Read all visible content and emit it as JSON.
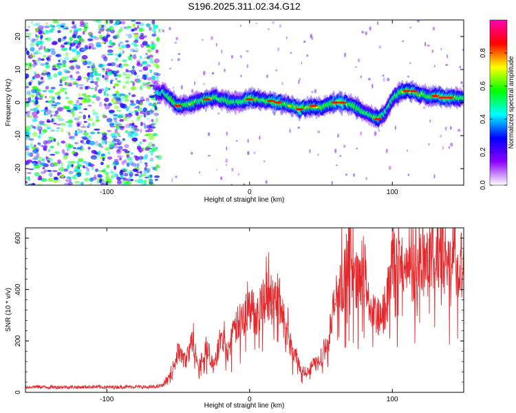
{
  "title": "S196.2025.311.02.34.G12",
  "chart_data": [
    {
      "type": "heatmap",
      "title": "S196.2025.311.02.34.G12",
      "xlabel": "Height of straight line (km)",
      "ylabel": "Frequency (Hz)",
      "xlim": [
        -157,
        150
      ],
      "ylim": [
        -25,
        25
      ],
      "x_ticks": [
        -100,
        0,
        100
      ],
      "x_tick_labels": [
        "-100",
        "0",
        "100"
      ],
      "y_ticks": [
        -20,
        -10,
        0,
        10,
        20
      ],
      "y_tick_labels": [
        "-20",
        "-10",
        "0",
        "10",
        "20"
      ],
      "noise_region_x": [
        -157,
        -63
      ],
      "ridge": {
        "x": [
          -65,
          -60,
          -55,
          -50,
          -45,
          -40,
          -35,
          -30,
          -25,
          -20,
          -15,
          -10,
          -5,
          0,
          5,
          10,
          15,
          20,
          25,
          30,
          35,
          40,
          45,
          50,
          55,
          60,
          65,
          70,
          75,
          80,
          85,
          90,
          95,
          100,
          105,
          110,
          115,
          120,
          125,
          130,
          135,
          140,
          145,
          150
        ],
        "y": [
          3,
          3,
          1,
          -1,
          -1,
          0,
          0.5,
          1,
          1.5,
          1,
          0.5,
          0,
          0.5,
          1,
          1,
          0.5,
          0.5,
          0,
          -0.5,
          -1,
          -2,
          -1.5,
          -1,
          -1.5,
          -0.5,
          0,
          0,
          -0.5,
          -1.5,
          -3,
          -4,
          -5,
          -3,
          1,
          3,
          3.5,
          3.5,
          2.5,
          2,
          2,
          1.5,
          1.5,
          1.5,
          1.5
        ],
        "amplitude": [
          0.35,
          0.45,
          0.65,
          0.75,
          0.55,
          0.7,
          0.5,
          0.75,
          0.6,
          0.55,
          0.7,
          0.5,
          0.6,
          0.85,
          0.7,
          0.55,
          0.75,
          0.85,
          0.6,
          0.7,
          0.9,
          0.65,
          0.75,
          0.7,
          0.6,
          0.85,
          0.9,
          0.6,
          0.7,
          0.5,
          0.55,
          0.75,
          0.45,
          0.55,
          0.6,
          0.75,
          0.8,
          0.7,
          0.6,
          0.75,
          0.85,
          0.8,
          0.65,
          0.5
        ]
      }
    },
    {
      "type": "line",
      "title": "",
      "xlabel": "Height of straight line (km)",
      "ylabel": "SNR (10 * v/v)",
      "xlim": [
        -157,
        150
      ],
      "ylim": [
        0,
        640
      ],
      "x_ticks": [
        -100,
        0,
        100
      ],
      "x_tick_labels": [
        "-100",
        "0",
        "100"
      ],
      "y_ticks": [
        0,
        200,
        400,
        600
      ],
      "y_tick_labels": [
        "0",
        "200",
        "400",
        "600"
      ],
      "series": [
        {
          "name": "SNR",
          "color": "#e8262a",
          "x": [
            -157,
            -150,
            -140,
            -130,
            -120,
            -110,
            -100,
            -90,
            -80,
            -70,
            -65,
            -60,
            -55,
            -50,
            -45,
            -40,
            -35,
            -30,
            -25,
            -20,
            -15,
            -10,
            -5,
            0,
            5,
            10,
            15,
            20,
            25,
            30,
            35,
            40,
            45,
            50,
            55,
            60,
            65,
            70,
            75,
            80,
            85,
            90,
            95,
            100,
            105,
            110,
            115,
            120,
            125,
            130,
            135,
            140,
            145,
            150
          ],
          "y": [
            20,
            22,
            20,
            21,
            20,
            22,
            20,
            21,
            22,
            20,
            22,
            30,
            70,
            160,
            120,
            200,
            110,
            170,
            90,
            220,
            160,
            250,
            290,
            330,
            300,
            370,
            350,
            380,
            250,
            170,
            110,
            70,
            110,
            120,
            200,
            360,
            420,
            550,
            430,
            490,
            310,
            280,
            310,
            500,
            480,
            460,
            470,
            520,
            510,
            530,
            530,
            520,
            510,
            500
          ]
        }
      ]
    }
  ],
  "colorbar": {
    "label": "Normalized spectral amplitude",
    "range": [
      0,
      1
    ],
    "ticks": [
      0.0,
      0.2,
      0.4,
      0.6,
      0.8
    ],
    "tick_labels": [
      "0.0",
      "0.2",
      "0.4",
      "0.6",
      "0.8"
    ],
    "colors": [
      "#ffffff",
      "#8b00ff",
      "#0000ff",
      "#00ffff",
      "#00ff00",
      "#ffff00",
      "#ff0000",
      "#ff00b0"
    ]
  }
}
